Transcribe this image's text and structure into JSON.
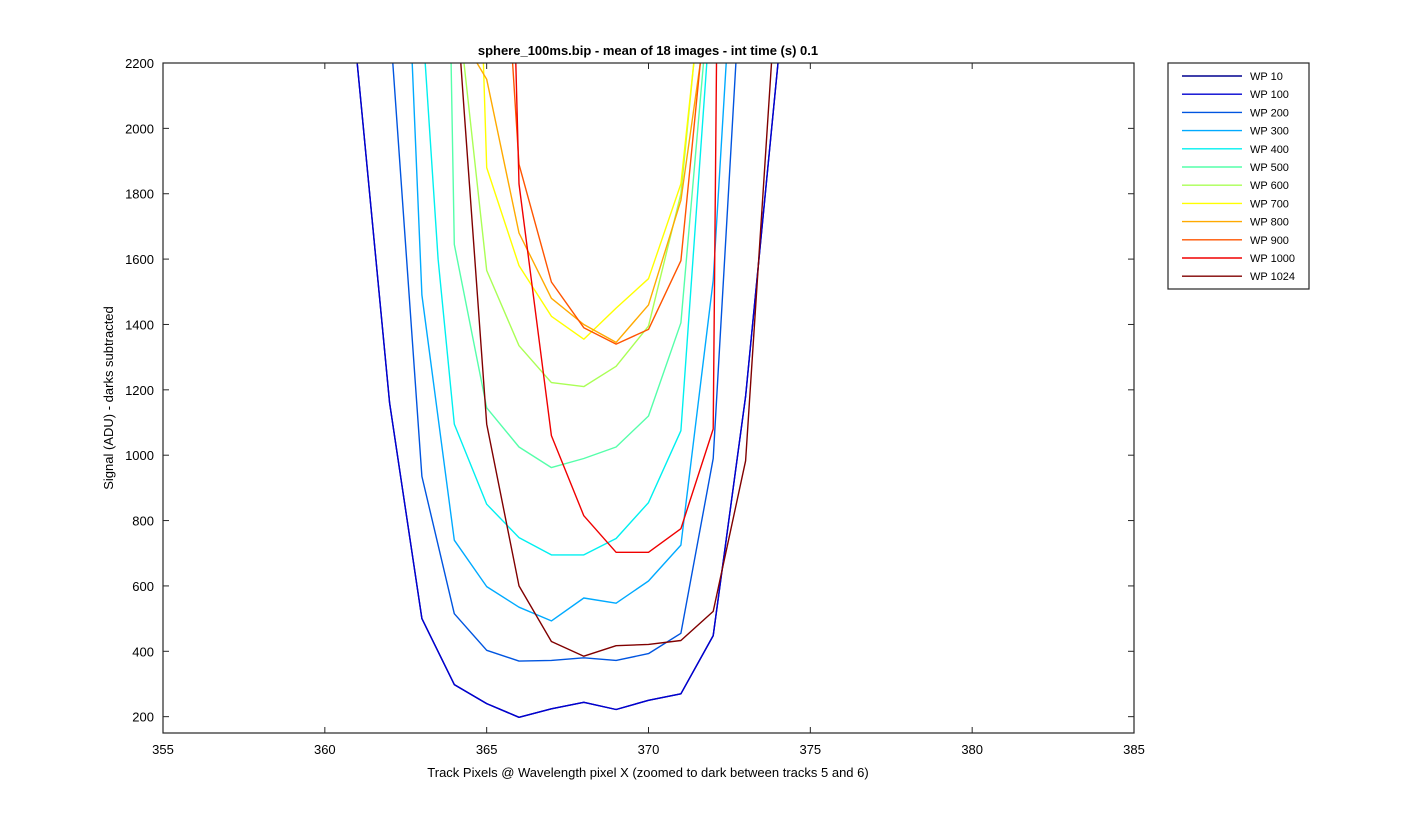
{
  "chart_data": {
    "type": "line",
    "title": "sphere_100ms.bip - mean of 18 images - int time (s) 0.1",
    "xlabel": "Track Pixels @ Wavelength pixel X  (zoomed to dark between tracks 5 and 6)",
    "ylabel": "Signal (ADU) - darks subtracted",
    "xlim": [
      355,
      385
    ],
    "ylim": [
      150,
      2200
    ],
    "xticks": [
      355,
      360,
      365,
      370,
      375,
      380,
      385
    ],
    "yticks": [
      200,
      400,
      600,
      800,
      1000,
      1200,
      1400,
      1600,
      1800,
      2000,
      2200
    ],
    "grid": false,
    "legend_position": "outside top-right",
    "series": [
      {
        "name": "WP 10",
        "color": "#00008f",
        "x": [
          361,
          362,
          363,
          364,
          365,
          366,
          367,
          368,
          369,
          370,
          371,
          372,
          373,
          374
        ],
        "y": [
          2200,
          1160,
          500,
          298,
          240,
          198,
          224,
          244,
          222,
          250,
          270,
          448,
          1180,
          2200
        ]
      },
      {
        "name": "WP 100",
        "color": "#0000d0",
        "x": [
          361,
          362,
          363,
          364,
          365,
          366,
          367,
          368,
          369,
          370,
          371,
          372,
          373,
          374
        ],
        "y": [
          2200,
          1160,
          500,
          298,
          240,
          198,
          224,
          244,
          222,
          250,
          270,
          448,
          1180,
          2200
        ]
      },
      {
        "name": "WP 200",
        "color": "#0055e0",
        "x": [
          362.1,
          363,
          364,
          365,
          366,
          367,
          368,
          369,
          370,
          371,
          372,
          372.7
        ],
        "y": [
          2200,
          935,
          515,
          403,
          370,
          372,
          380,
          372,
          393,
          455,
          990,
          2200
        ]
      },
      {
        "name": "WP 300",
        "color": "#00aaff",
        "x": [
          362.7,
          363,
          364,
          365,
          366,
          367,
          368,
          369,
          370,
          371,
          372,
          372.4
        ],
        "y": [
          2200,
          1490,
          740,
          598,
          535,
          493,
          563,
          547,
          615,
          725,
          1535,
          2200
        ]
      },
      {
        "name": "WP 400",
        "color": "#00f0f0",
        "x": [
          363.1,
          363.5,
          364,
          365,
          366,
          367,
          368,
          369,
          370,
          371,
          371.8
        ],
        "y": [
          2200,
          1600,
          1095,
          850,
          748,
          695,
          695,
          745,
          855,
          1075,
          2200
        ]
      },
      {
        "name": "WP 500",
        "color": "#55ffaa",
        "x": [
          363.9,
          364,
          365,
          366,
          367,
          368,
          369,
          370,
          371,
          371.7
        ],
        "y": [
          2200,
          1645,
          1145,
          1025,
          962,
          990,
          1025,
          1120,
          1405,
          2200
        ]
      },
      {
        "name": "WP 600",
        "color": "#aaff55",
        "x": [
          364.3,
          365,
          366,
          367,
          368,
          369,
          370,
          371,
          371.4
        ],
        "y": [
          2200,
          1565,
          1335,
          1222,
          1210,
          1272,
          1395,
          1800,
          2200
        ]
      },
      {
        "name": "WP 700",
        "color": "#ffff00",
        "x": [
          364.9,
          365,
          366,
          367,
          368,
          369,
          370,
          371,
          371.4
        ],
        "y": [
          2200,
          1880,
          1580,
          1425,
          1355,
          1450,
          1540,
          1830,
          2200
        ]
      },
      {
        "name": "WP 800",
        "color": "#ffaa00",
        "x": [
          364.7,
          365,
          366,
          367,
          368,
          369,
          370,
          371,
          371.6
        ],
        "y": [
          2200,
          2150,
          1680,
          1480,
          1400,
          1345,
          1460,
          1780,
          2200
        ]
      },
      {
        "name": "WP 900",
        "color": "#ff5500",
        "x": [
          365.8,
          366,
          367,
          368,
          369,
          370,
          371,
          371.6
        ],
        "y": [
          2200,
          1890,
          1530,
          1390,
          1340,
          1385,
          1595,
          2200
        ]
      },
      {
        "name": "WP 1000",
        "color": "#f00000",
        "x": [
          365.9,
          366,
          367,
          368,
          369,
          370,
          371,
          372,
          372.1
        ],
        "y": [
          2200,
          1830,
          1060,
          815,
          703,
          703,
          775,
          1080,
          2200
        ]
      },
      {
        "name": "WP 1024",
        "color": "#800000",
        "x": [
          364.2,
          364.3,
          365,
          366,
          367,
          368,
          369,
          370,
          371,
          372,
          373,
          373.8
        ],
        "y": [
          2200,
          2060,
          1095,
          600,
          430,
          385,
          417,
          421,
          433,
          522,
          983,
          2200
        ]
      }
    ]
  }
}
